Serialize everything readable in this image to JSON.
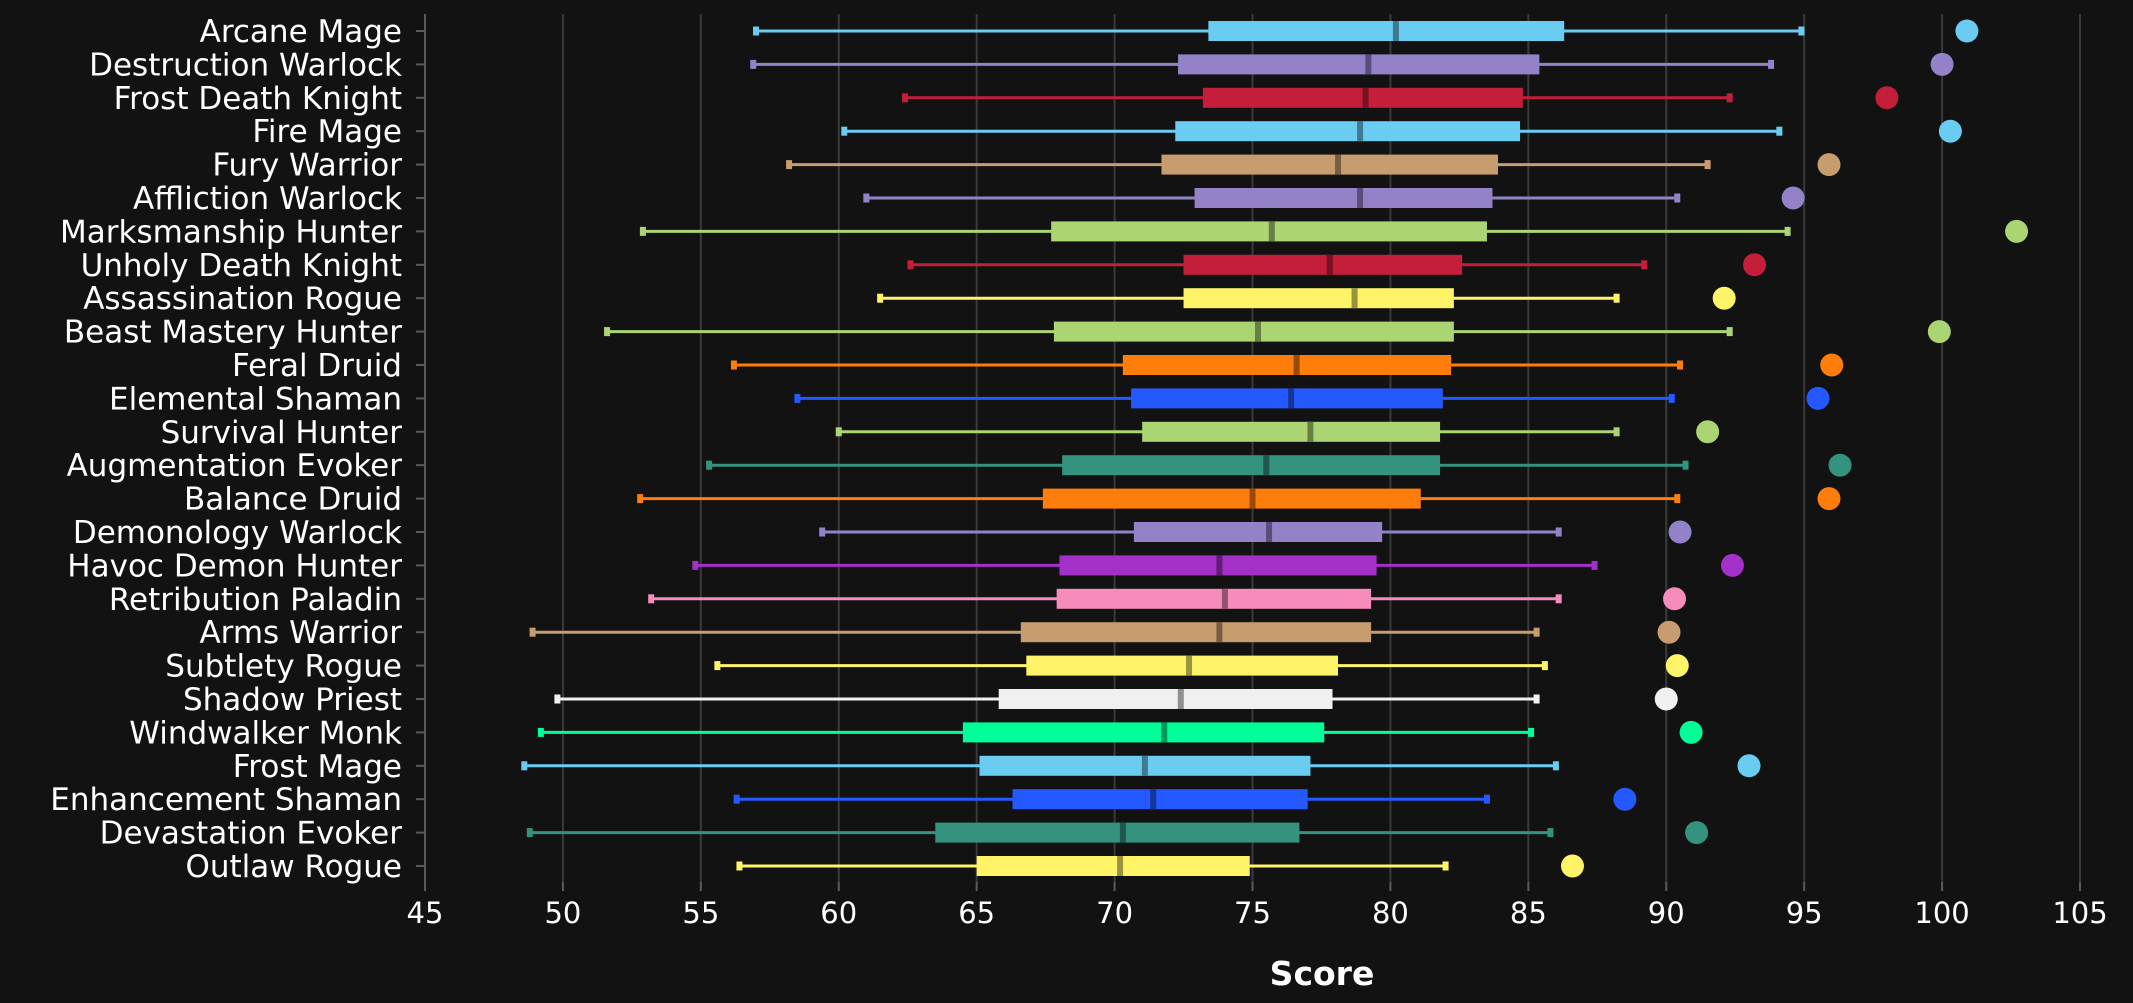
{
  "chart_data": {
    "type": "boxplot",
    "title": "",
    "xlabel": "Score",
    "ylabel": "",
    "xlim": [
      45,
      105
    ],
    "xticks": [
      45,
      50,
      55,
      60,
      65,
      70,
      75,
      80,
      85,
      90,
      95,
      100,
      105
    ],
    "grid": true,
    "legend": "none",
    "series": [
      {
        "name": "Arcane Mage",
        "color": "#69ccf0",
        "whisker_low": 57.0,
        "q1": 73.4,
        "median": 80.2,
        "q3": 86.3,
        "whisker_high": 94.9,
        "outlier": 100.9
      },
      {
        "name": "Destruction Warlock",
        "color": "#9482c9",
        "whisker_low": 56.9,
        "q1": 72.3,
        "median": 79.2,
        "q3": 85.4,
        "whisker_high": 93.8,
        "outlier": 100.0
      },
      {
        "name": "Frost Death Knight",
        "color": "#c41e3a",
        "whisker_low": 62.4,
        "q1": 73.2,
        "median": 79.1,
        "q3": 84.8,
        "whisker_high": 92.3,
        "outlier": 98.0
      },
      {
        "name": "Fire Mage",
        "color": "#69ccf0",
        "whisker_low": 60.2,
        "q1": 72.2,
        "median": 78.9,
        "q3": 84.7,
        "whisker_high": 94.1,
        "outlier": 100.3
      },
      {
        "name": "Fury Warrior",
        "color": "#c79c6e",
        "whisker_low": 58.2,
        "q1": 71.7,
        "median": 78.1,
        "q3": 83.9,
        "whisker_high": 91.5,
        "outlier": 95.9
      },
      {
        "name": "Affliction Warlock",
        "color": "#9482c9",
        "whisker_low": 61.0,
        "q1": 72.9,
        "median": 78.9,
        "q3": 83.7,
        "whisker_high": 90.4,
        "outlier": 94.6
      },
      {
        "name": "Marksmanship Hunter",
        "color": "#abd473",
        "whisker_low": 52.9,
        "q1": 67.7,
        "median": 75.7,
        "q3": 83.5,
        "whisker_high": 94.4,
        "outlier": 102.7
      },
      {
        "name": "Unholy Death Knight",
        "color": "#c41e3a",
        "whisker_low": 62.6,
        "q1": 72.5,
        "median": 77.8,
        "q3": 82.6,
        "whisker_high": 89.2,
        "outlier": 93.2
      },
      {
        "name": "Assassination Rogue",
        "color": "#fff468",
        "whisker_low": 61.5,
        "q1": 72.5,
        "median": 78.7,
        "q3": 82.3,
        "whisker_high": 88.2,
        "outlier": 92.1
      },
      {
        "name": "Beast Mastery Hunter",
        "color": "#abd473",
        "whisker_low": 51.6,
        "q1": 67.8,
        "median": 75.2,
        "q3": 82.3,
        "whisker_high": 92.3,
        "outlier": 99.9
      },
      {
        "name": "Feral Druid",
        "color": "#ff7d0a",
        "whisker_low": 56.2,
        "q1": 70.3,
        "median": 76.6,
        "q3": 82.2,
        "whisker_high": 90.5,
        "outlier": 96.0
      },
      {
        "name": "Elemental Shaman",
        "color": "#2459ff",
        "whisker_low": 58.5,
        "q1": 70.6,
        "median": 76.4,
        "q3": 81.9,
        "whisker_high": 90.2,
        "outlier": 95.5
      },
      {
        "name": "Survival Hunter",
        "color": "#abd473",
        "whisker_low": 60.0,
        "q1": 71.0,
        "median": 77.1,
        "q3": 81.8,
        "whisker_high": 88.2,
        "outlier": 91.5
      },
      {
        "name": "Augmentation Evoker",
        "color": "#33937f",
        "whisker_low": 55.3,
        "q1": 68.1,
        "median": 75.5,
        "q3": 81.8,
        "whisker_high": 90.7,
        "outlier": 96.3
      },
      {
        "name": "Balance Druid",
        "color": "#ff7d0a",
        "whisker_low": 52.8,
        "q1": 67.4,
        "median": 75.0,
        "q3": 81.1,
        "whisker_high": 90.4,
        "outlier": 95.9
      },
      {
        "name": "Demonology Warlock",
        "color": "#9482c9",
        "whisker_low": 59.4,
        "q1": 70.7,
        "median": 75.6,
        "q3": 79.7,
        "whisker_high": 86.1,
        "outlier": 90.5
      },
      {
        "name": "Havoc Demon Hunter",
        "color": "#a330c9",
        "whisker_low": 54.8,
        "q1": 68.0,
        "median": 73.8,
        "q3": 79.5,
        "whisker_high": 87.4,
        "outlier": 92.4
      },
      {
        "name": "Retribution Paladin",
        "color": "#f58cba",
        "whisker_low": 53.2,
        "q1": 67.9,
        "median": 74.0,
        "q3": 79.3,
        "whisker_high": 86.1,
        "outlier": 90.3
      },
      {
        "name": "Arms Warrior",
        "color": "#c79c6e",
        "whisker_low": 48.9,
        "q1": 66.6,
        "median": 73.8,
        "q3": 79.3,
        "whisker_high": 85.3,
        "outlier": 90.1
      },
      {
        "name": "Subtlety Rogue",
        "color": "#fff468",
        "whisker_low": 55.6,
        "q1": 66.8,
        "median": 72.7,
        "q3": 78.1,
        "whisker_high": 85.6,
        "outlier": 90.4
      },
      {
        "name": "Shadow Priest",
        "color": "#f0f0f0",
        "whisker_low": 49.8,
        "q1": 65.8,
        "median": 72.4,
        "q3": 77.9,
        "whisker_high": 85.3,
        "outlier": 90.0
      },
      {
        "name": "Windwalker Monk",
        "color": "#00ff98",
        "whisker_low": 49.2,
        "q1": 64.5,
        "median": 71.8,
        "q3": 77.6,
        "whisker_high": 85.1,
        "outlier": 90.9
      },
      {
        "name": "Frost Mage",
        "color": "#69ccf0",
        "whisker_low": 48.6,
        "q1": 65.1,
        "median": 71.1,
        "q3": 77.1,
        "whisker_high": 86.0,
        "outlier": 93.0
      },
      {
        "name": "Enhancement Shaman",
        "color": "#2459ff",
        "whisker_low": 56.3,
        "q1": 66.3,
        "median": 71.4,
        "q3": 77.0,
        "whisker_high": 83.5,
        "outlier": 88.5
      },
      {
        "name": "Devastation Evoker",
        "color": "#33937f",
        "whisker_low": 48.8,
        "q1": 63.5,
        "median": 70.3,
        "q3": 76.7,
        "whisker_high": 85.8,
        "outlier": 91.1
      },
      {
        "name": "Outlaw Rogue",
        "color": "#fff468",
        "whisker_low": 56.4,
        "q1": 65.0,
        "median": 70.2,
        "q3": 74.9,
        "whisker_high": 82.0,
        "outlier": 86.6
      }
    ]
  }
}
